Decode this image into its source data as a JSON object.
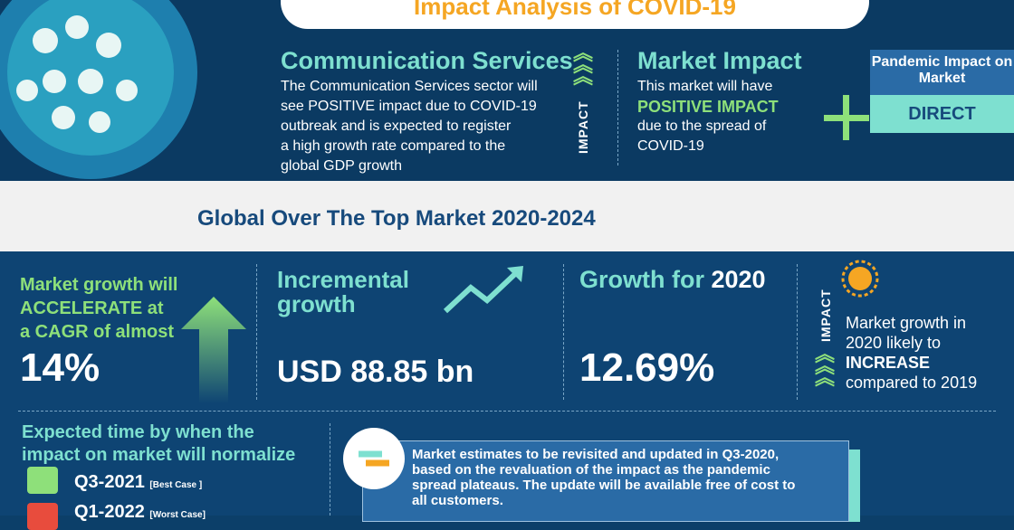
{
  "header": {
    "title": "Impact Analysis of COVID-19"
  },
  "sector": {
    "title": "Communication Services",
    "text": [
      "The Communication Services sector will",
      "see POSITIVE  impact due to COVID-19",
      "outbreak and is expected to register",
      "a high growth rate compared to the",
      "global GDP growth"
    ],
    "impact_label": "IMPACT"
  },
  "market_impact": {
    "title": "Market Impact",
    "line1": "This market will have",
    "highlight": "POSITIVE IMPACT",
    "line2": "due to the spread of",
    "line3": "COVID-19"
  },
  "pandemic": {
    "title": "Pandemic Impact on Market",
    "value": "DIRECT"
  },
  "band": {
    "title": "Global Over The Top Market 2020-2024"
  },
  "cagr": {
    "line1": "Market growth will",
    "line2": "ACCELERATE at",
    "line3": "a CAGR of almost",
    "value": "14%"
  },
  "incremental": {
    "title1": "Incremental",
    "title2": "growth",
    "value": "USD 88.85 bn"
  },
  "growth2020": {
    "title": "Growth for",
    "year": "2020",
    "value": "12.69%"
  },
  "yoy": {
    "impact_label": "IMPACT",
    "line1": "Market growth in",
    "line2": "2020 likely to",
    "highlight": "INCREASE",
    "line3": "compared to 2019"
  },
  "normalize": {
    "title1": "Expected time by when the",
    "title2": "impact on market will normalize",
    "best": "Q3-2021",
    "best_tag": "[Best Case ]",
    "worst": "Q1-2022",
    "worst_tag": "[Worst Case]"
  },
  "note": {
    "text": "Market estimates to be revisited and updated in Q3-2020, based on the revaluation of the impact as the pandemic spread plateaus. The update will be available free of cost to all customers."
  },
  "colors": {
    "navy": "#0c3f69",
    "teal": "#7ee0d0",
    "green": "#8ee07a",
    "orange": "#f5a623"
  }
}
